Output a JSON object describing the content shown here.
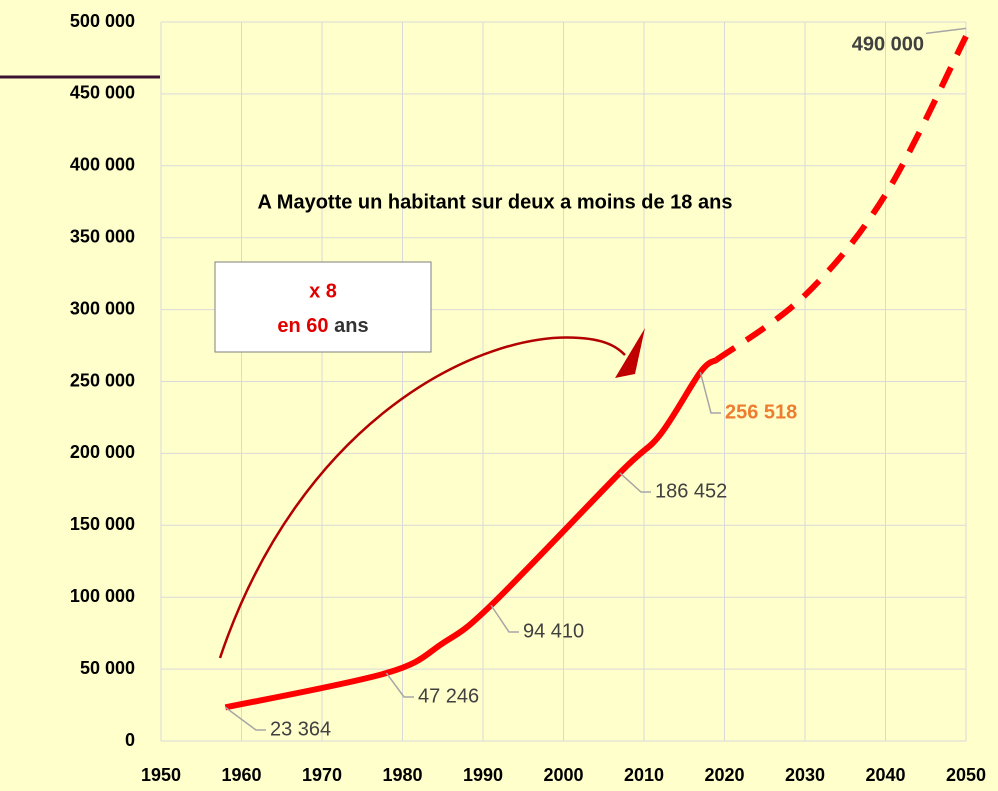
{
  "chart_data": {
    "type": "line",
    "title": "A Mayotte un habitant sur deux a moins de 18 ans",
    "annotations": {
      "box_line1": "x 8",
      "box_line2_red": "en 60",
      "box_line2_rest": "ans"
    },
    "xlim": [
      1950,
      2050
    ],
    "xticks": [
      1950,
      1960,
      1970,
      1980,
      1990,
      2000,
      2010,
      2020,
      2030,
      2040,
      2050
    ],
    "ylim": [
      0,
      500000
    ],
    "yticks": [
      {
        "value": 0,
        "label": "0"
      },
      {
        "value": 50000,
        "label": "50 000"
      },
      {
        "value": 100000,
        "label": "100 000"
      },
      {
        "value": 150000,
        "label": "150 000"
      },
      {
        "value": 200000,
        "label": "200 000"
      },
      {
        "value": 250000,
        "label": "250 000"
      },
      {
        "value": 300000,
        "label": "300 000"
      },
      {
        "value": 350000,
        "label": "350 000"
      },
      {
        "value": 400000,
        "label": "400 000"
      },
      {
        "value": 450000,
        "label": "450 000"
      },
      {
        "value": 500000,
        "label": "500 000"
      }
    ],
    "grid": true,
    "series": [
      {
        "color": "#ff0000",
        "dashed": false,
        "x": [
          1958,
          1978,
          1985,
          1991,
          2007,
          2012,
          2017,
          2019
        ],
        "values": [
          23364,
          47246,
          68000,
          94410,
          186452,
          213000,
          256518,
          265000
        ],
        "value_labels": [
          "23 364",
          "47 246",
          null,
          "94 410",
          "186 452",
          null,
          "256 518",
          null
        ]
      },
      {
        "color": "#ff0000",
        "dashed": true,
        "x": [
          2019,
          2030,
          2040,
          2050
        ],
        "values": [
          265000,
          310000,
          380000,
          490000
        ],
        "value_labels": [
          null,
          null,
          null,
          "490 000"
        ]
      }
    ]
  }
}
